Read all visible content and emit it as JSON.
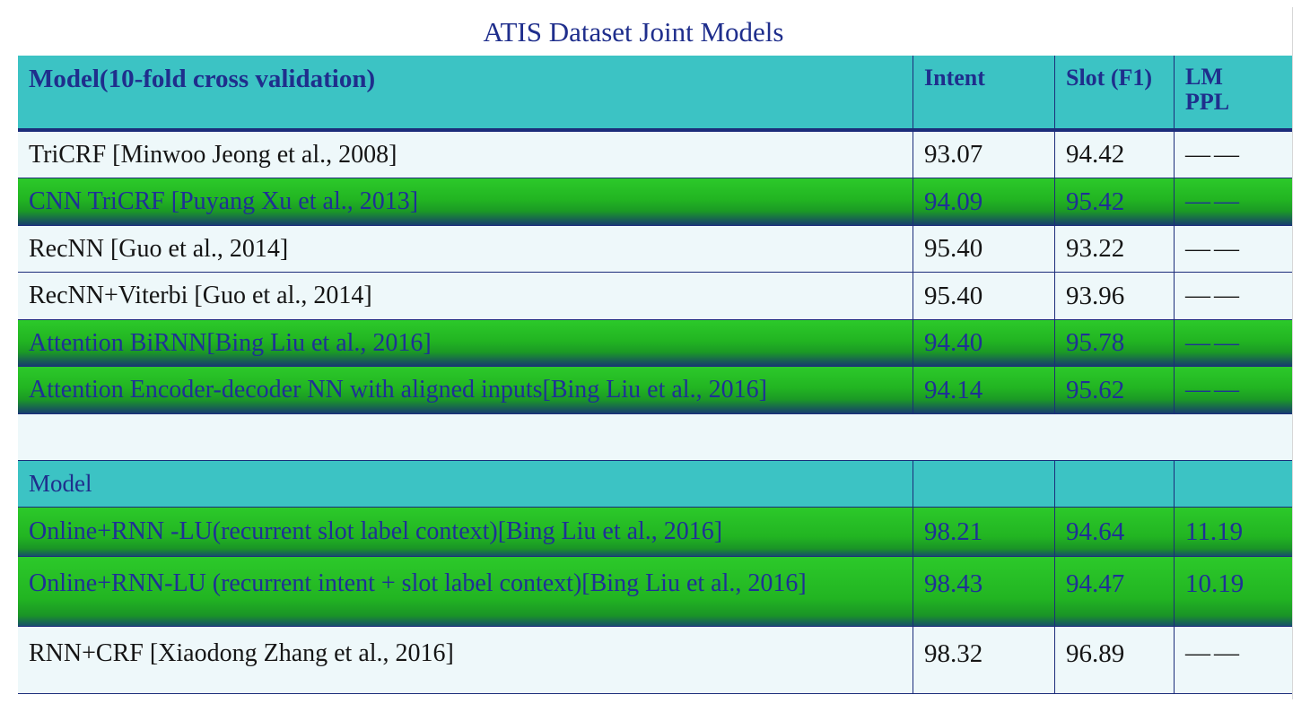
{
  "title": "ATIS Dataset Joint Models",
  "header": {
    "model": "Model(10-fold cross validation)",
    "intent": "Intent",
    "slot": "Slot (F1)",
    "lm_line1": "LM",
    "lm_line2": "PPL"
  },
  "rows_top": [
    {
      "model": "TriCRF [Minwoo Jeong et al., 2008]",
      "intent": "93.07",
      "slot": "94.42",
      "lm": "——"
    },
    {
      "model": "CNN TriCRF [Puyang Xu et al., 2013]",
      "intent": "94.09",
      "slot": "95.42",
      "lm": "——"
    },
    {
      "model": "RecNN [Guo et al., 2014]",
      "intent": "95.40",
      "slot": "93.22",
      "lm": "——"
    },
    {
      "model": "RecNN+Viterbi [Guo et al., 2014]",
      "intent": "95.40",
      "slot": "93.96",
      "lm": "——"
    },
    {
      "model": "Attention BiRNN[Bing Liu et al., 2016]",
      "intent": "94.40",
      "slot": "95.78",
      "lm": "——"
    },
    {
      "model": "Attention Encoder-decoder NN with aligned inputs[Bing Liu et al., 2016]",
      "intent": "94.14",
      "slot": "95.62",
      "lm": "——"
    }
  ],
  "subheader": {
    "model": "Model"
  },
  "rows_bottom": [
    {
      "model": "Online+RNN -LU(recurrent slot label context)[Bing Liu et al., 2016]",
      "intent": "98.21",
      "slot": "94.64",
      "lm": "11.19"
    },
    {
      "model": "Online+RNN-LU (recurrent intent + slot label context)[Bing Liu et al., 2016]",
      "intent": "98.43",
      "slot": "94.47",
      "lm": "10.19"
    },
    {
      "model": "RNN+CRF [Xiaodong Zhang et al., 2016]",
      "intent": "98.32",
      "slot": "96.89",
      "lm": "——"
    }
  ],
  "colors": {
    "header_bg": "#3cc3c4",
    "header_text": "#1f2e8c",
    "green_row": "#22b522",
    "light_row": "#eef8fa",
    "border": "#1c2d7a"
  }
}
